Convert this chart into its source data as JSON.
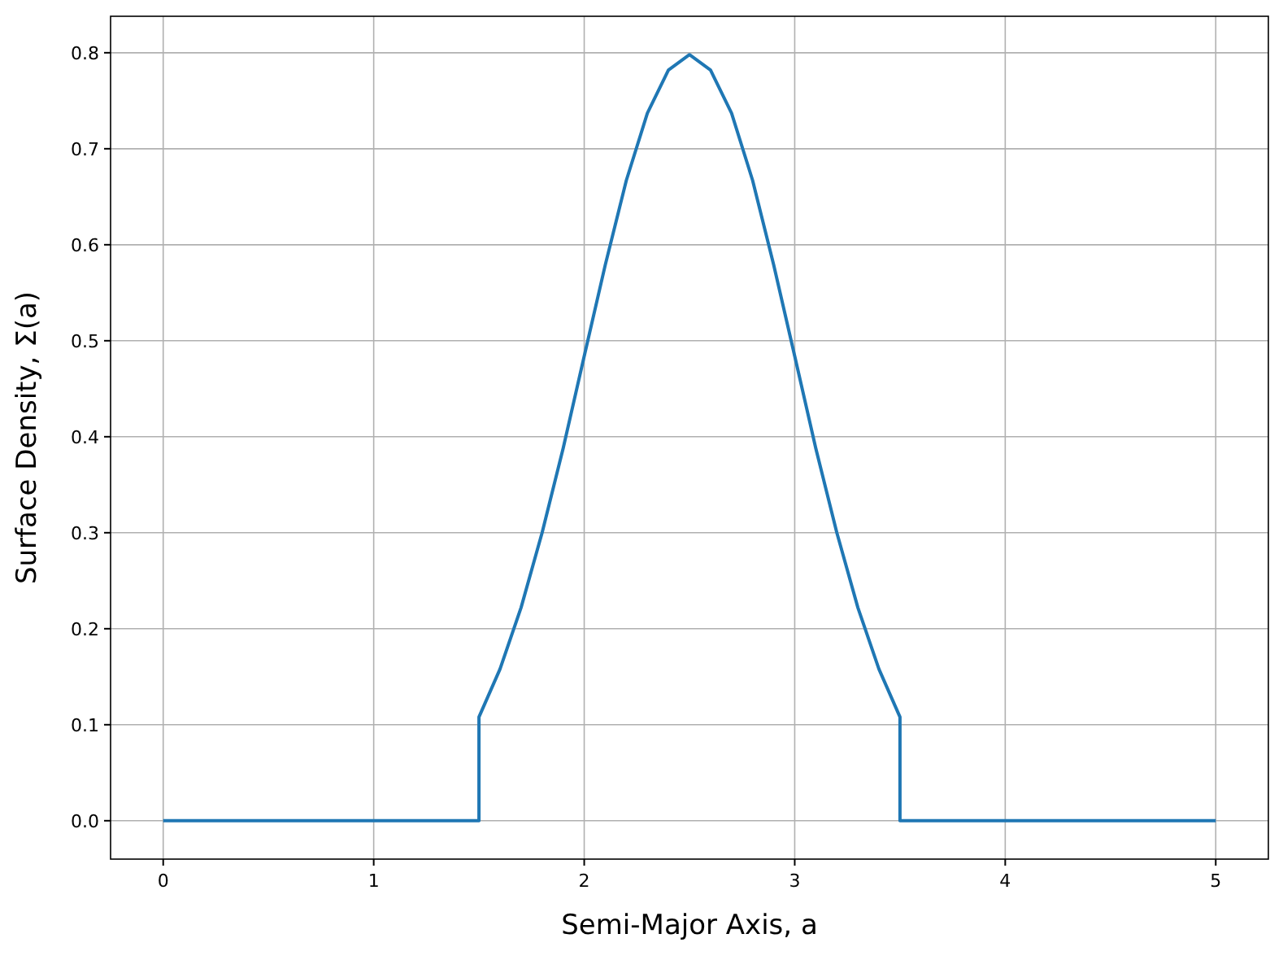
{
  "chart_data": {
    "type": "line",
    "xlabel": "Semi-Major Axis, a",
    "ylabel": "Surface Density, Σ(a)",
    "series": [
      {
        "color": "#1f77b4",
        "x": [
          0,
          1.5,
          1.5,
          1.6,
          1.7,
          1.8,
          1.9,
          2.0,
          2.1,
          2.2,
          2.3,
          2.4,
          2.5,
          2.6,
          2.7,
          2.8,
          2.9,
          3.0,
          3.1,
          3.2,
          3.3,
          3.4,
          3.5,
          3.5,
          5
        ],
        "values": [
          0,
          0,
          0.108,
          0.158,
          0.222,
          0.3,
          0.388,
          0.484,
          0.579,
          0.667,
          0.737,
          0.782,
          0.798,
          0.782,
          0.737,
          0.667,
          0.579,
          0.484,
          0.388,
          0.3,
          0.222,
          0.158,
          0.108,
          0,
          0
        ]
      }
    ],
    "xlim": [
      -0.25,
      5.25
    ],
    "xticks": [
      0,
      1,
      2,
      3,
      4,
      5
    ],
    "ylim": [
      -0.04,
      0.838
    ],
    "yticks": [
      {
        "value": 0,
        "label": "0.0"
      },
      {
        "value": 0.1,
        "label": "0.1"
      },
      {
        "value": 0.2,
        "label": "0.2"
      },
      {
        "value": 0.3,
        "label": "0.3"
      },
      {
        "value": 0.4,
        "label": "0.4"
      },
      {
        "value": 0.5,
        "label": "0.5"
      },
      {
        "value": 0.6,
        "label": "0.6"
      },
      {
        "value": 0.7,
        "label": "0.7"
      },
      {
        "value": 0.8,
        "label": "0.8"
      }
    ],
    "grid": true,
    "line_style": "solid"
  }
}
